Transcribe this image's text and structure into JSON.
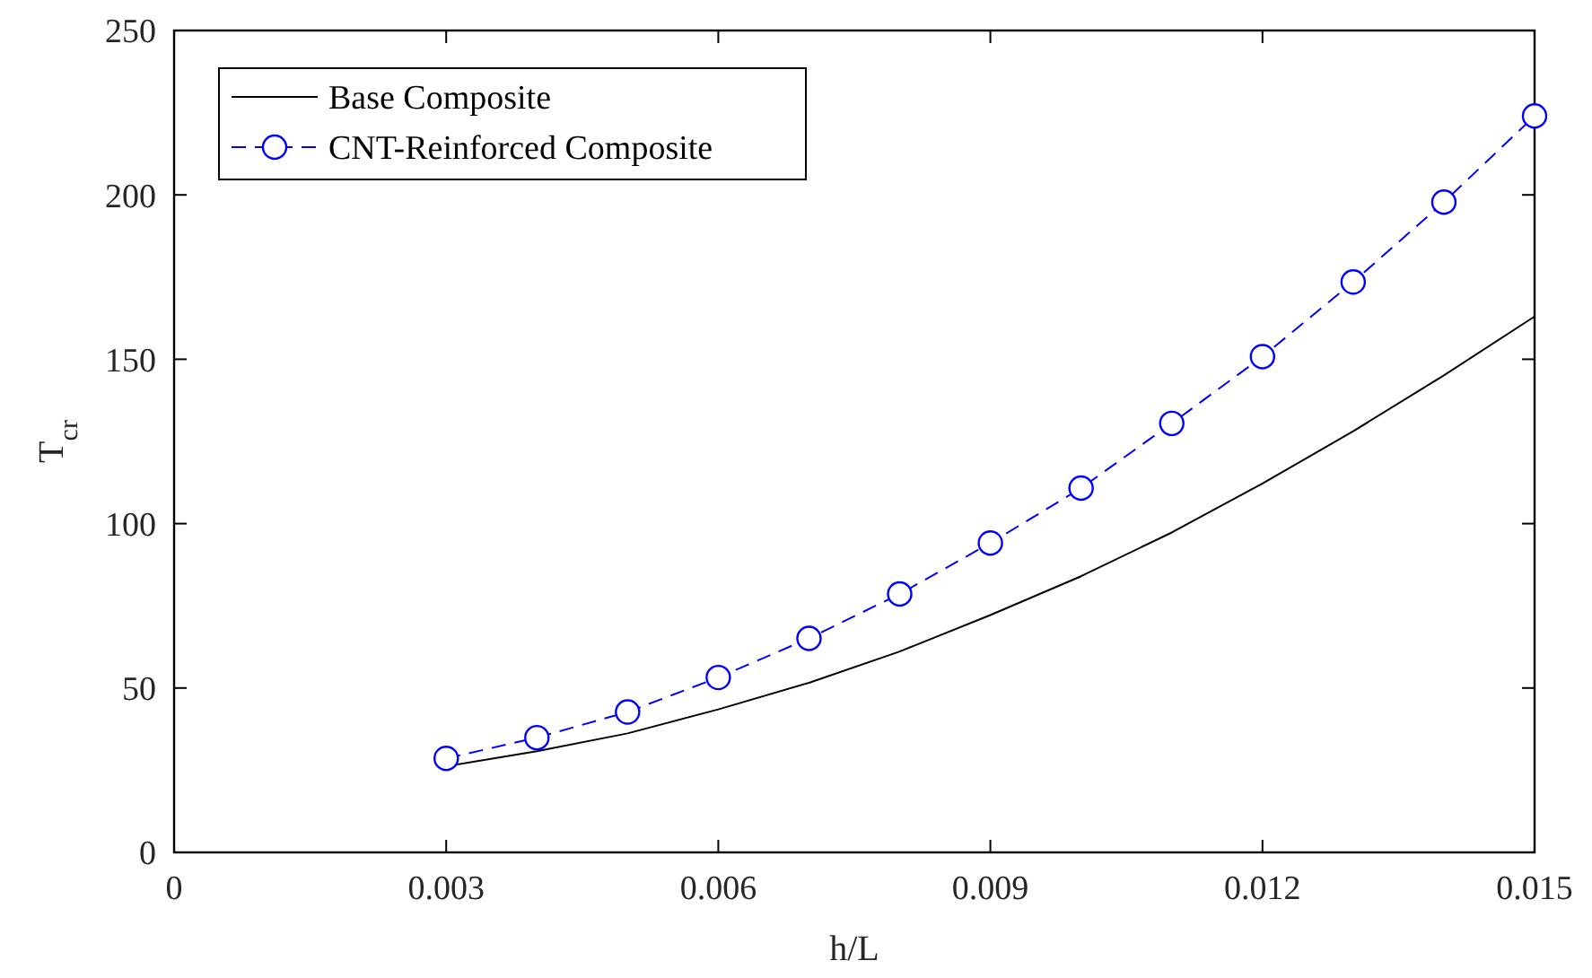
{
  "chart_data": {
    "type": "line",
    "xlabel": "h/L",
    "ylabel": "T$_{cr}$",
    "x": [
      0.003,
      0.004,
      0.005,
      0.006,
      0.007,
      0.008,
      0.009,
      0.01,
      0.011,
      0.012,
      0.013,
      0.014,
      0.015
    ],
    "series": [
      {
        "name": "Base Composite",
        "color": "#000000",
        "line_style": "solid",
        "marker": "none",
        "values": [
          26.2,
          30.8,
          36.2,
          43.5,
          51.6,
          61.1,
          72.2,
          84,
          97.3,
          112.2,
          128.1,
          145.1,
          163
        ]
      },
      {
        "name": "CNT-Reinforced Composite",
        "color": "#0000ff",
        "line_style": "dashed",
        "marker": "circle",
        "values": [
          28.6,
          34.9,
          42.7,
          53.2,
          65.1,
          78.6,
          94.1,
          110.8,
          130.5,
          150.8,
          173.5,
          197.8,
          224
        ]
      }
    ],
    "xlim": [
      0,
      0.015
    ],
    "xticks": [
      0,
      0.003,
      0.006,
      0.009,
      0.012,
      0.015
    ],
    "ylim": [
      0,
      250
    ],
    "yticks": [
      0,
      50,
      100,
      150,
      200,
      250
    ],
    "grid": false,
    "legend": "top left"
  }
}
